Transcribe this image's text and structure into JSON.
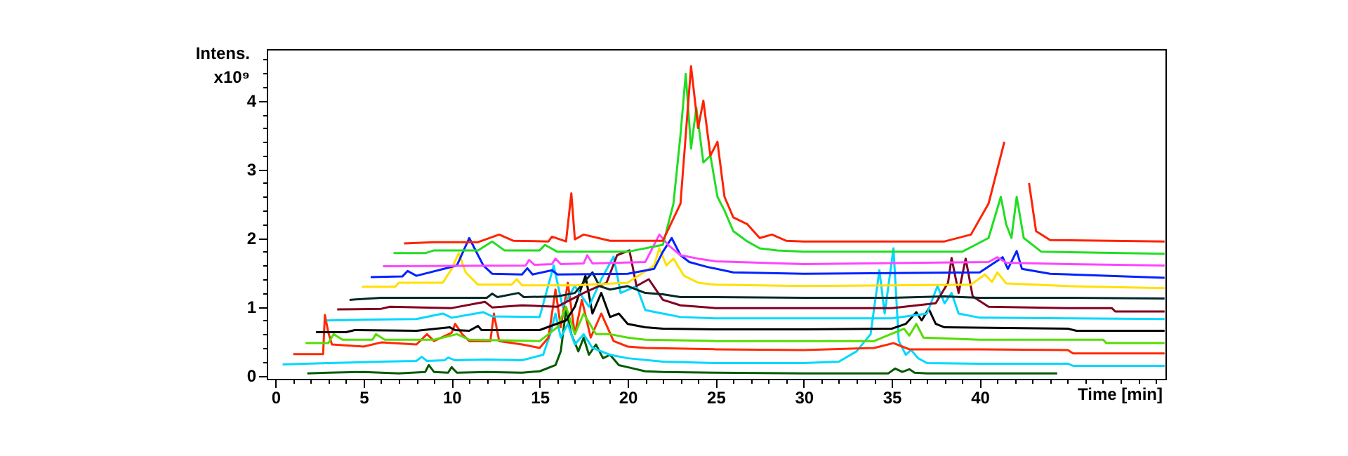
{
  "chart_data": {
    "type": "line",
    "xlabel": "Time [min]",
    "ylabel": "Intens. x10⁹",
    "xlim": [
      -0.5,
      50.55
    ],
    "ylim": [
      -0.05,
      4.75
    ],
    "grid": false,
    "xticks": [
      0,
      {
        "value": 1,
        "label": null
      },
      {
        "value": 2,
        "label": null
      },
      {
        "value": 3,
        "label": null
      },
      {
        "value": 4,
        "label": null
      },
      5,
      {
        "value": 6,
        "label": null
      },
      {
        "value": 7,
        "label": null
      },
      {
        "value": 8,
        "label": null
      },
      {
        "value": 9,
        "label": null
      },
      10,
      {
        "value": 11,
        "label": null
      },
      {
        "value": 12,
        "label": null
      },
      {
        "value": 13,
        "label": null
      },
      {
        "value": 14,
        "label": null
      },
      15,
      {
        "value": 16,
        "label": null
      },
      {
        "value": 17,
        "label": null
      },
      {
        "value": 18,
        "label": null
      },
      {
        "value": 19,
        "label": null
      },
      20,
      {
        "value": 21,
        "label": null
      },
      {
        "value": 22,
        "label": null
      },
      {
        "value": 23,
        "label": null
      },
      {
        "value": 24,
        "label": null
      },
      25,
      {
        "value": 26,
        "label": null
      },
      {
        "value": 27,
        "label": null
      },
      {
        "value": 28,
        "label": null
      },
      {
        "value": 29,
        "label": null
      },
      30,
      {
        "value": 31,
        "label": null
      },
      {
        "value": 32,
        "label": null
      },
      {
        "value": 33,
        "label": null
      },
      {
        "value": 34,
        "label": null
      },
      35,
      {
        "value": 36,
        "label": null
      },
      {
        "value": 37,
        "label": null
      },
      {
        "value": 38,
        "label": null
      },
      {
        "value": 39,
        "label": null
      },
      40,
      {
        "value": 41,
        "label": null
      },
      {
        "value": 42,
        "label": null
      },
      {
        "value": 43,
        "label": null
      },
      {
        "value": 44,
        "label": null
      },
      {
        "value": 45,
        "label": null
      },
      {
        "value": 46,
        "label": null
      },
      {
        "value": 47,
        "label": null
      },
      {
        "value": 48,
        "label": null
      },
      {
        "value": 49,
        "label": null
      },
      {
        "value": 50,
        "label": null
      }
    ],
    "yticks": [
      0,
      {
        "value": 0.2,
        "label": null
      },
      {
        "value": 0.4,
        "label": null
      },
      {
        "value": 0.6,
        "label": null
      },
      {
        "value": 0.8,
        "label": null
      },
      1,
      {
        "value": 1.2,
        "label": null
      },
      {
        "value": 1.4,
        "label": null
      },
      {
        "value": 1.6,
        "label": null
      },
      {
        "value": 1.8,
        "label": null
      },
      2,
      {
        "value": 2.2,
        "label": null
      },
      {
        "value": 2.4,
        "label": null
      },
      {
        "value": 2.6,
        "label": null
      },
      {
        "value": 2.8,
        "label": null
      },
      3,
      {
        "value": 3.2,
        "label": null
      },
      {
        "value": 3.4,
        "label": null
      },
      {
        "value": 3.6,
        "label": null
      },
      {
        "value": 3.8,
        "label": null
      },
      4,
      {
        "value": 4.2,
        "label": null
      },
      {
        "value": 4.4,
        "label": null
      },
      {
        "value": 4.6,
        "label": null
      }
    ],
    "series": [
      {
        "color": "#005a00",
        "x": [
          1.8,
          3,
          5,
          7,
          8.5,
          8.7,
          9,
          9.8,
          10,
          10.3,
          12,
          14,
          15,
          15.9,
          16.2,
          16.5,
          16.8,
          17.2,
          17.5,
          17.8,
          18.2,
          18.6,
          19,
          19.5,
          20,
          21,
          22,
          25,
          30,
          34.8,
          35.2,
          35.6,
          36,
          36.3,
          37,
          44.4
        ],
        "values": [
          0.03,
          0.04,
          0.05,
          0.03,
          0.05,
          0.15,
          0.05,
          0.04,
          0.12,
          0.04,
          0.05,
          0.04,
          0.06,
          0.15,
          0.35,
          0.96,
          0.6,
          0.35,
          0.55,
          0.3,
          0.45,
          0.25,
          0.3,
          0.15,
          0.12,
          0.06,
          0.05,
          0.04,
          0.03,
          0.03,
          0.1,
          0.05,
          0.09,
          0.04,
          0.03,
          0.03
        ]
      },
      {
        "color": "#00d8ff",
        "x": [
          0.4,
          3,
          6,
          8,
          8.3,
          8.6,
          9.6,
          9.8,
          10.2,
          12,
          14,
          15.2,
          15.6,
          15.9,
          16.2,
          16.6,
          17,
          17.5,
          18,
          19,
          20,
          22,
          25,
          30,
          32,
          33,
          33.8,
          34.3,
          34.6,
          35.1,
          35.4,
          35.8,
          36.1,
          36.5,
          37,
          40,
          45,
          45.3,
          50.5
        ],
        "values": [
          0.16,
          0.18,
          0.2,
          0.21,
          0.27,
          0.21,
          0.22,
          0.26,
          0.22,
          0.23,
          0.22,
          0.3,
          0.6,
          0.9,
          0.55,
          0.75,
          0.45,
          0.6,
          0.4,
          0.3,
          0.25,
          0.2,
          0.18,
          0.18,
          0.2,
          0.35,
          0.6,
          1.53,
          0.9,
          1.85,
          0.5,
          0.3,
          0.37,
          0.25,
          0.18,
          0.17,
          0.17,
          0.14,
          0.14
        ]
      },
      {
        "color": "#ff2a00",
        "x": [
          1,
          2.7,
          2.8,
          3,
          3.2,
          5,
          6,
          8,
          8.6,
          9,
          10,
          10.2,
          10.6,
          11,
          12.2,
          12.4,
          12.7,
          14,
          15,
          15.5,
          15.9,
          16.2,
          16.6,
          17,
          17.4,
          17.9,
          18.5,
          19.2,
          20,
          21,
          25,
          30,
          34,
          35.1,
          35.6,
          36,
          40,
          45,
          45.3,
          50.5
        ],
        "values": [
          0.31,
          0.31,
          0.88,
          0.62,
          0.45,
          0.42,
          0.48,
          0.45,
          0.6,
          0.5,
          0.62,
          0.75,
          0.6,
          0.5,
          0.5,
          0.9,
          0.5,
          0.45,
          0.4,
          0.55,
          1.25,
          0.7,
          1.35,
          0.6,
          1.1,
          0.55,
          0.9,
          0.5,
          0.42,
          0.4,
          0.38,
          0.37,
          0.4,
          0.47,
          0.42,
          0.38,
          0.38,
          0.37,
          0.32,
          0.32
        ]
      },
      {
        "color": "#55dd00",
        "x": [
          1.7,
          3,
          3.3,
          3.8,
          5.5,
          5.7,
          6.2,
          9,
          10.3,
          11,
          15,
          16,
          16.5,
          17,
          17.5,
          18.2,
          19,
          20,
          21,
          25,
          30,
          34,
          35.7,
          36,
          36.4,
          36.8,
          40,
          47,
          47.2,
          50.5
        ],
        "values": [
          0.47,
          0.47,
          0.6,
          0.52,
          0.52,
          0.6,
          0.52,
          0.52,
          0.6,
          0.52,
          0.5,
          0.7,
          1.0,
          0.6,
          0.9,
          0.6,
          0.6,
          0.55,
          0.52,
          0.5,
          0.5,
          0.5,
          0.68,
          0.58,
          0.75,
          0.55,
          0.52,
          0.52,
          0.47,
          0.47
        ]
      },
      {
        "color": "#000000",
        "x": [
          2.3,
          4,
          4.5,
          8,
          9.9,
          10.2,
          11,
          11.5,
          11.7,
          13,
          15,
          16.5,
          17,
          17.6,
          18,
          18.5,
          19,
          19.5,
          20,
          21,
          22,
          25,
          30,
          35,
          35.8,
          36.4,
          36.7,
          37.1,
          37.5,
          38,
          45,
          45.5,
          50.5
        ],
        "values": [
          0.63,
          0.63,
          0.66,
          0.65,
          0.7,
          0.66,
          0.65,
          0.72,
          0.66,
          0.66,
          0.66,
          0.8,
          1.0,
          1.45,
          0.9,
          1.2,
          0.85,
          0.9,
          0.75,
          0.7,
          0.68,
          0.67,
          0.67,
          0.68,
          0.75,
          0.92,
          0.8,
          0.97,
          0.75,
          0.7,
          0.68,
          0.65,
          0.65
        ]
      },
      {
        "color": "#00d8ff",
        "x": [
          2.9,
          5,
          8,
          9.5,
          10,
          11.8,
          12.3,
          15,
          15.8,
          16.3,
          17,
          17.8,
          18.5,
          19.2,
          19.6,
          20.5,
          21,
          22,
          23,
          25,
          30,
          35,
          37,
          37.6,
          38,
          38.4,
          38.8,
          40,
          45,
          50.5
        ],
        "values": [
          0.8,
          0.81,
          0.82,
          0.9,
          0.84,
          0.92,
          0.86,
          0.85,
          1.6,
          1.0,
          1.3,
          1.0,
          1.4,
          1.73,
          1.2,
          1.3,
          0.95,
          0.9,
          0.85,
          0.83,
          0.83,
          0.83,
          0.9,
          1.3,
          1.05,
          1.2,
          0.9,
          0.84,
          0.83,
          0.82
        ]
      },
      {
        "color": "#800020",
        "x": [
          3.5,
          6,
          6.5,
          10,
          11.9,
          12.3,
          14,
          16,
          17.5,
          18.8,
          19.4,
          20.1,
          20.5,
          21.2,
          22,
          23,
          25,
          30,
          35,
          37.5,
          38.2,
          38.4,
          38.8,
          39.2,
          39.6,
          40.5,
          45,
          47.5,
          47.7,
          50.5
        ],
        "values": [
          0.96,
          0.97,
          1.0,
          0.98,
          1.07,
          0.99,
          1.02,
          1.0,
          1.2,
          1.35,
          1.75,
          1.82,
          1.3,
          1.4,
          1.1,
          1.02,
          0.98,
          0.98,
          0.98,
          1.05,
          1.35,
          1.71,
          1.2,
          1.7,
          1.15,
          1.0,
          0.98,
          0.98,
          0.93,
          0.93
        ]
      },
      {
        "color": "#002828",
        "x": [
          4.2,
          6,
          12,
          12.3,
          12.6,
          13.8,
          14.1,
          16,
          17,
          18,
          18.4,
          19,
          20,
          21,
          22,
          23,
          25,
          30,
          35,
          38,
          40,
          45,
          50.5
        ],
        "values": [
          1.1,
          1.13,
          1.13,
          1.19,
          1.14,
          1.2,
          1.14,
          1.15,
          1.2,
          1.5,
          1.3,
          1.25,
          1.3,
          1.2,
          1.18,
          1.14,
          1.14,
          1.13,
          1.13,
          1.15,
          1.13,
          1.13,
          1.12
        ]
      },
      {
        "color": "#ffe000",
        "x": [
          4.9,
          6.8,
          7,
          9.5,
          10,
          10.4,
          10.8,
          11.5,
          13.4,
          13.7,
          14,
          17,
          20,
          21.5,
          21.8,
          22.2,
          22.6,
          23.2,
          24,
          25,
          30,
          39.5,
          40.3,
          40.7,
          41,
          41.5,
          45,
          50.5
        ],
        "values": [
          1.29,
          1.29,
          1.35,
          1.35,
          1.55,
          1.78,
          1.5,
          1.32,
          1.32,
          1.4,
          1.31,
          1.31,
          1.35,
          1.6,
          1.85,
          1.6,
          1.7,
          1.45,
          1.35,
          1.32,
          1.3,
          1.32,
          1.47,
          1.36,
          1.5,
          1.34,
          1.3,
          1.27
        ]
      },
      {
        "color": "#0022ff",
        "x": [
          5.4,
          7.2,
          7.5,
          8,
          10.3,
          11,
          11.8,
          12.3,
          14,
          14.3,
          14.6,
          15.7,
          16,
          20,
          21.5,
          22,
          22.5,
          23,
          23.5,
          24.5,
          26,
          30,
          40,
          41.3,
          41.6,
          42.1,
          42.4,
          44,
          50.5
        ],
        "values": [
          1.43,
          1.44,
          1.52,
          1.45,
          1.6,
          2.0,
          1.6,
          1.48,
          1.47,
          1.56,
          1.47,
          1.53,
          1.47,
          1.48,
          1.55,
          1.8,
          2.0,
          1.75,
          1.65,
          1.58,
          1.5,
          1.48,
          1.5,
          1.72,
          1.55,
          1.81,
          1.55,
          1.48,
          1.42
        ]
      },
      {
        "color": "#ff44ff",
        "x": [
          6.1,
          14.2,
          14.4,
          14.7,
          15.7,
          15.9,
          16.2,
          17.5,
          17.7,
          18,
          21,
          21.8,
          22.3,
          23,
          24,
          25,
          30,
          40.5,
          41,
          41.5,
          45,
          50.5
        ],
        "values": [
          1.59,
          1.6,
          1.68,
          1.61,
          1.62,
          1.7,
          1.62,
          1.63,
          1.75,
          1.63,
          1.65,
          2.05,
          1.9,
          1.75,
          1.7,
          1.66,
          1.62,
          1.65,
          1.72,
          1.64,
          1.62,
          1.6
        ]
      },
      {
        "color": "#22dd22",
        "x": [
          6.7,
          8.5,
          9,
          11.5,
          12.3,
          13,
          15,
          15.3,
          16,
          20,
          22,
          22.6,
          23,
          23.3,
          23.6,
          23.9,
          24.3,
          24.7,
          25.1,
          25.5,
          26,
          26.8,
          27.5,
          28.5,
          30,
          39,
          40.5,
          41.2,
          41.5,
          41.8,
          42.1,
          42.5,
          43.5,
          50.5
        ],
        "values": [
          1.78,
          1.78,
          1.82,
          1.82,
          1.95,
          1.82,
          1.82,
          1.9,
          1.8,
          1.8,
          1.9,
          2.5,
          3.5,
          4.39,
          3.3,
          3.9,
          3.1,
          3.2,
          2.6,
          2.4,
          2.1,
          1.95,
          1.85,
          1.82,
          1.8,
          1.8,
          2.0,
          2.6,
          2.2,
          2.0,
          2.6,
          2.0,
          1.8,
          1.77
        ]
      },
      {
        "color": "#ff2200",
        "x": [
          7.3,
          9,
          11.5,
          12.7,
          13.5,
          15.5,
          15.7,
          16.5,
          16.8,
          17,
          17.5,
          19,
          22,
          23,
          23.6,
          24,
          24.3,
          24.7,
          25.1,
          25.5,
          26,
          26.8,
          27.5,
          28.2,
          29,
          30,
          38,
          39.5,
          40.5,
          41,
          41.4,
          42.1,
          42.8,
          43.2,
          44,
          50.5
        ],
        "values": [
          1.92,
          1.94,
          1.94,
          2.05,
          1.96,
          1.95,
          2.02,
          1.95,
          2.65,
          1.98,
          2.05,
          1.96,
          1.96,
          2.5,
          4.5,
          3.6,
          4.0,
          3.2,
          3.4,
          2.6,
          2.3,
          2.2,
          2.0,
          2.05,
          1.96,
          1.95,
          1.95,
          2.05,
          2.5,
          3.0,
          3.4,
          null,
          2.8,
          2.1,
          1.97,
          1.95
        ]
      }
    ]
  }
}
